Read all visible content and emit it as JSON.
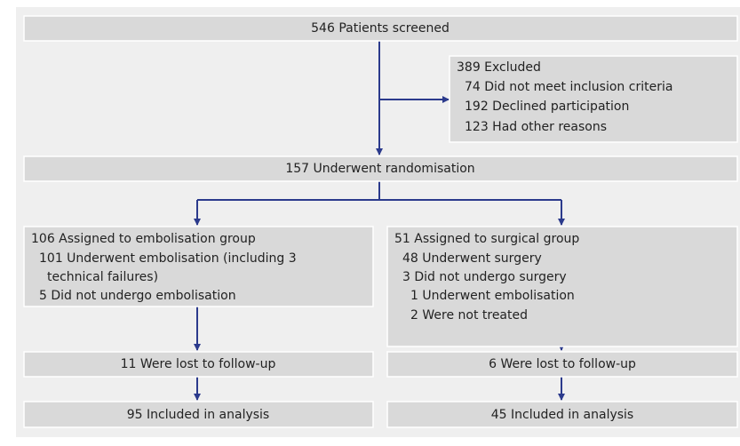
{
  "nodes": [
    {
      "label": "546 Patients screened"
    },
    {
      "label": "389 Excluded",
      "items": [
        "74 Did not meet inclusion criteria",
        "192 Declined participation",
        "123 Had other reasons"
      ]
    },
    {
      "label": "157 Underwent randomisation"
    },
    {
      "label": "106 Assigned to embolisation group",
      "items": [
        "101 Underwent embolisation (including 3",
        "technical failures)",
        "5 Did not undergo embolisation"
      ]
    },
    {
      "label": "51 Assigned to surgical group",
      "items": [
        "48 Underwent surgery",
        "3 Did not undergo surgery",
        "1 Underwent embolisation",
        "2 Were not treated"
      ]
    },
    {
      "label": "11 Were lost to follow-up"
    },
    {
      "label": "6 Were lost to follow-up"
    },
    {
      "label": "95 Included in analysis"
    },
    {
      "label": "45 Included in analysis"
    }
  ]
}
